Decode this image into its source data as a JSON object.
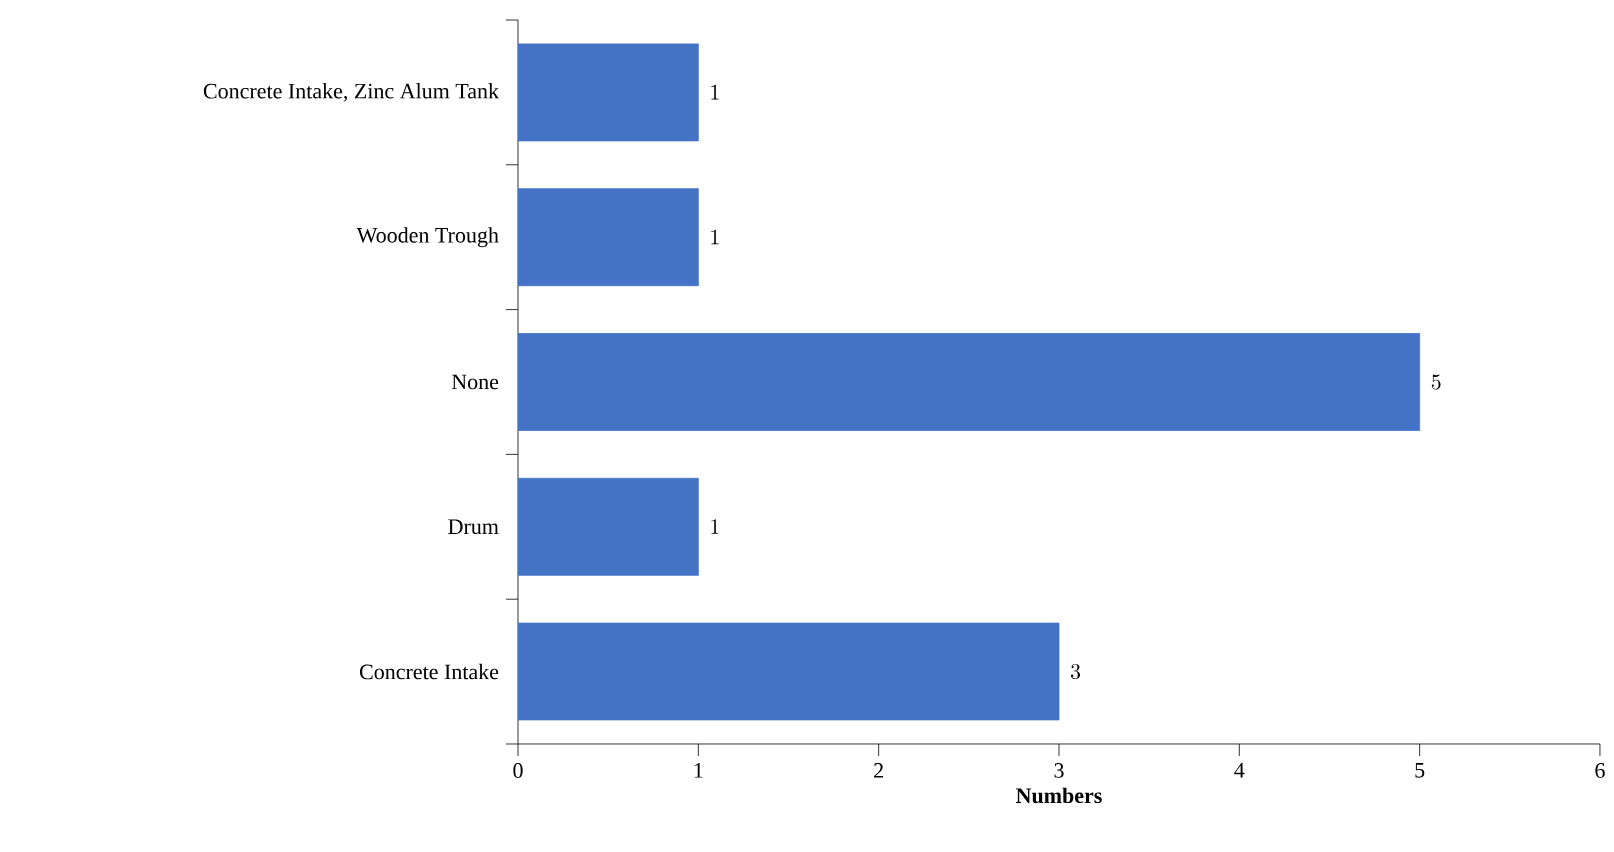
{
  "chart_data": {
    "type": "bar",
    "orientation": "horizontal",
    "xlabel": "Numbers",
    "categories": [
      "Concrete Intake, Zinc Alum Tank",
      "Wooden Trough",
      "None",
      "Drum",
      "Concrete Intake"
    ],
    "values": [
      1,
      1,
      5,
      1,
      3
    ],
    "color": "#4472c4",
    "xlim": [
      0,
      6
    ],
    "xticks": [
      0,
      1,
      2,
      3,
      4,
      5,
      6
    ],
    "data_labels": true,
    "grid": false
  }
}
